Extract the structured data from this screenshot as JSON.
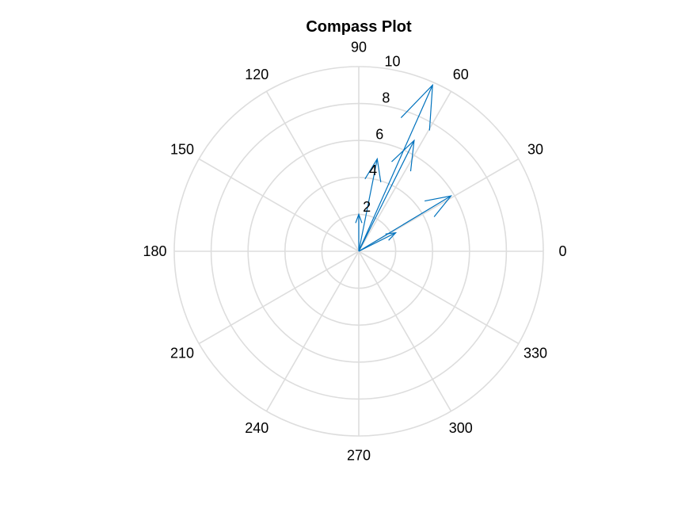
{
  "chart_data": {
    "type": "compass",
    "title": "Compass Plot",
    "theta_tick_labels": [
      "0",
      "30",
      "60",
      "90",
      "120",
      "150",
      "180",
      "210",
      "240",
      "270",
      "300",
      "330"
    ],
    "r_tick_labels": [
      "2",
      "4",
      "6",
      "8",
      "10"
    ],
    "r_ticks": [
      2,
      4,
      6,
      8,
      10
    ],
    "r_max": 10,
    "grid": true,
    "series": [
      {
        "vectors": [
          {
            "u": 5.0,
            "v": 3.0
          },
          {
            "u": 2.0,
            "v": 1.0
          },
          {
            "u": 0.0,
            "v": 2.0
          },
          {
            "u": 1.0,
            "v": 5.0
          },
          {
            "u": 3.0,
            "v": 6.0
          },
          {
            "u": 4.0,
            "v": 9.0
          }
        ]
      }
    ],
    "colors": {
      "vector": "#0072BD",
      "grid": "#DDDDDD",
      "text": "#000000"
    }
  }
}
